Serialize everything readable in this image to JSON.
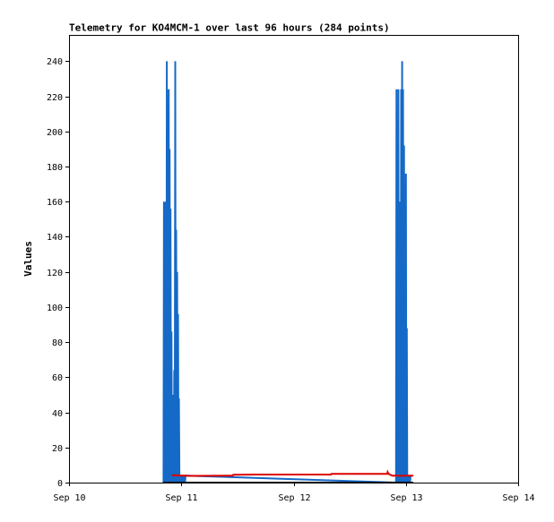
{
  "chart_data": {
    "type": "line",
    "title": "Telemetry for KO4MCM-1 over last 96 hours (284 points)",
    "xlabel": "",
    "ylabel": "Values",
    "xlim": [
      "Sep 10",
      "Sep 14"
    ],
    "ylim": [
      0,
      255
    ],
    "x_ticks": [
      "Sep 10",
      "Sep 11",
      "Sep 12",
      "Sep 13",
      "Sep 14"
    ],
    "y_ticks": [
      0,
      20,
      40,
      60,
      80,
      100,
      120,
      140,
      160,
      180,
      200,
      220,
      240
    ],
    "grid": false,
    "legend": "none",
    "colors": {
      "axes": "#000000",
      "series_blue": "#1569c7",
      "series_red": "#dd0000",
      "series_black": "#000000"
    },
    "series": [
      {
        "color": "#1569c7",
        "x_hours": [
          20.2,
          20.3,
          20.4,
          20.5,
          20.6,
          20.7,
          20.8,
          20.9,
          21.0,
          21.1,
          21.2,
          21.3,
          21.4,
          21.5,
          21.6,
          21.7,
          21.8,
          21.9,
          22.0,
          22.1,
          22.2,
          22.3,
          22.4,
          22.5,
          22.6,
          22.7,
          22.8,
          22.9,
          23.0,
          23.1,
          23.2,
          23.3,
          23.4,
          23.5,
          23.6,
          23.7,
          23.8,
          23.9,
          24.0,
          24.1,
          24.2,
          24.3,
          24.4,
          24.5,
          24.6,
          24.7,
          24.8,
          24.9,
          69.9,
          70.0,
          70.1,
          70.2,
          70.3,
          70.4,
          70.5,
          70.6,
          70.7,
          70.8,
          70.9,
          71.0,
          71.1,
          71.2,
          71.3,
          71.4,
          71.5,
          71.6,
          71.7,
          71.8,
          71.9,
          72.0,
          72.1,
          72.2,
          72.3,
          72.4,
          72.5,
          72.6,
          72.7,
          72.8,
          72.9,
          73.0
        ],
        "values": [
          0,
          160,
          0,
          160,
          0,
          64,
          0,
          240,
          0,
          112,
          0,
          224,
          0,
          190,
          0,
          156,
          0,
          86,
          0,
          50,
          0,
          18,
          0,
          64,
          0,
          240,
          0,
          144,
          0,
          120,
          0,
          96,
          0,
          48,
          0,
          4,
          0,
          4,
          0,
          4,
          0,
          4,
          0,
          4,
          0,
          4,
          0,
          4,
          0,
          224,
          0,
          16,
          0,
          224,
          0,
          160,
          0,
          144,
          0,
          224,
          0,
          240,
          0,
          224,
          0,
          192,
          0,
          128,
          0,
          176,
          0,
          88,
          0,
          4,
          0,
          4,
          0,
          4,
          0,
          4
        ]
      },
      {
        "color": "#dd0000",
        "x_hours": [
          22.0,
          26.0,
          30.0,
          34.0,
          35.0,
          35.1,
          40.0,
          45.0,
          50.0,
          55.0,
          56.0,
          56.1,
          60.0,
          65.0,
          68.0,
          68.1,
          68.3,
          68.6,
          68.9,
          69.2,
          69.6,
          70.0,
          71.0,
          72.0,
          73.0,
          73.6
        ],
        "values": [
          4.2,
          3.8,
          3.9,
          4.0,
          4.0,
          4.5,
          4.6,
          4.6,
          4.6,
          4.6,
          4.6,
          5.0,
          5.0,
          5.0,
          5.0,
          6.0,
          5.0,
          4.6,
          4.2,
          3.9,
          4.0,
          4.0,
          3.9,
          4.0,
          4.0,
          4.0
        ]
      },
      {
        "color": "#000000",
        "x_hours": [
          20.2,
          73.6
        ],
        "values": [
          0,
          0
        ]
      }
    ]
  }
}
